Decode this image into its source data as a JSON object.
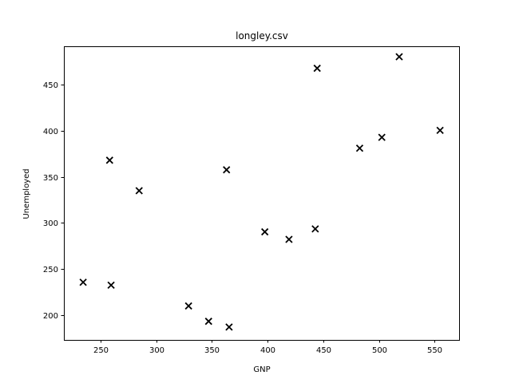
{
  "chart_data": {
    "type": "scatter",
    "title": "longley.csv",
    "xlabel": "GNP",
    "ylabel": "Unemployed",
    "xlim": [
      217,
      572
    ],
    "ylim": [
      173,
      492
    ],
    "xticks": [
      250,
      300,
      350,
      400,
      450,
      500,
      550
    ],
    "yticks": [
      200,
      250,
      300,
      350,
      400,
      450
    ],
    "marker": "x",
    "marker_color": "#000000",
    "grid": false,
    "points": [
      {
        "x": 234.3,
        "y": 235.6
      },
      {
        "x": 259.4,
        "y": 232.5
      },
      {
        "x": 258.1,
        "y": 368.2
      },
      {
        "x": 284.6,
        "y": 335.1
      },
      {
        "x": 329.0,
        "y": 209.9
      },
      {
        "x": 347.0,
        "y": 193.2
      },
      {
        "x": 365.4,
        "y": 187.0
      },
      {
        "x": 363.1,
        "y": 357.8
      },
      {
        "x": 397.5,
        "y": 290.4
      },
      {
        "x": 419.2,
        "y": 282.2
      },
      {
        "x": 442.8,
        "y": 293.6
      },
      {
        "x": 444.5,
        "y": 468.1
      },
      {
        "x": 482.7,
        "y": 381.3
      },
      {
        "x": 502.6,
        "y": 393.1
      },
      {
        "x": 518.2,
        "y": 480.6
      },
      {
        "x": 554.9,
        "y": 400.7
      }
    ]
  }
}
